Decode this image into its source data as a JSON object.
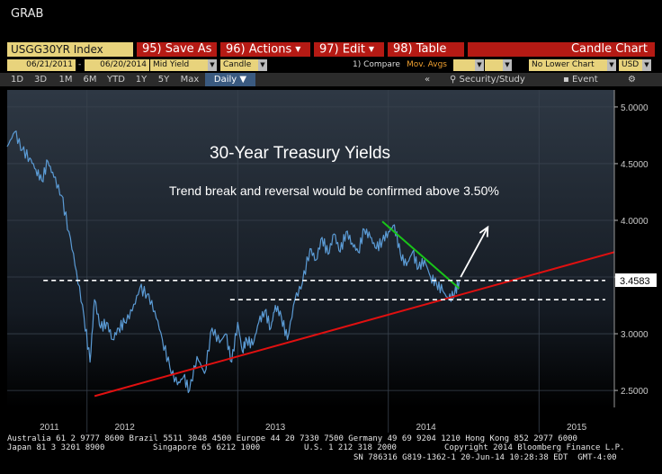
{
  "window": {
    "title": "GRAB"
  },
  "toolbar": {
    "ticker": "USGG30YR Index",
    "save_as": "95) Save As",
    "actions": "96) Actions",
    "edit": "97) Edit",
    "table": "98) Table",
    "chart_type": "Candle Chart"
  },
  "params": {
    "start_date": "06/21/2011",
    "end_date": "06/20/2014",
    "field": "Mid Yield",
    "style": "Candle",
    "compare": "1) Compare",
    "mov_avgs": "Mov. Avgs",
    "lower_chart": "No Lower Chart",
    "currency": "USD"
  },
  "range_buttons": [
    "1D",
    "3D",
    "1M",
    "6M",
    "YTD",
    "1Y",
    "5Y",
    "Max"
  ],
  "frequency": "Daily",
  "right_tools": {
    "security_study": "Security/Study",
    "event": "Event"
  },
  "last_price_label": "3.4583",
  "annotations": {
    "title": "30-Year Treasury Yields",
    "subtitle": "Trend break and reversal would be confirmed above 3.50%"
  },
  "footer": {
    "line1": "Australia 61 2 9777 8600 Brazil 5511 3048 4500 Europe 44 20 7330 7500 Germany 49 69 9204 1210 Hong Kong 852 2977 6000",
    "line2a": "Japan 81 3 3201 8900",
    "line2b": "Singapore 65 6212 1000",
    "line2c": "U.S. 1 212 318 2000",
    "line2d": "Copyright 2014 Bloomberg Finance L.P.",
    "line3": "SN 786316 G819-1362-1 20-Jun-14 10:28:38 EDT  GMT-4:00"
  },
  "colors": {
    "price": "#5b9bd5",
    "support_line": "#e01010",
    "resistance_line": "#19c419",
    "dashed_levels": "#ffffff",
    "arrow": "#ffffff"
  },
  "chart_data": {
    "type": "line",
    "y_tick_labels": [
      "2.5000",
      "3.0000",
      "3.5000",
      "4.0000",
      "4.5000",
      "5.0000"
    ],
    "ylim": [
      2.35,
      5.15
    ],
    "x_tick_labels": [
      "2011",
      "2012",
      "2013",
      "2014",
      "2015"
    ],
    "x_year_values": [
      2011.75,
      2012.25,
      2013.25,
      2014.25,
      2015.25
    ],
    "xlim": [
      2011.47,
      2015.5
    ],
    "grid": true,
    "series": [
      {
        "values_x": [
          2011.47,
          2011.52,
          2011.57,
          2011.62,
          2011.66,
          2011.7,
          2011.74,
          2011.78,
          2011.83,
          2011.88,
          2011.93,
          2011.98,
          2012.02,
          2012.05,
          2012.09,
          2012.13,
          2012.17,
          2012.21,
          2012.25,
          2012.3,
          2012.35,
          2012.4,
          2012.45,
          2012.5,
          2012.55,
          2012.6,
          2012.64,
          2012.68,
          2012.73,
          2012.78,
          2012.83,
          2012.88,
          2012.92,
          2012.96,
          2013.0,
          2013.03,
          2013.06,
          2013.1,
          2013.14,
          2013.18,
          2013.22,
          2013.25,
          2013.29,
          2013.33,
          2013.38,
          2013.43,
          2013.48,
          2013.52,
          2013.56,
          2013.6,
          2013.64,
          2013.68,
          2013.72,
          2013.76,
          2013.8,
          2013.84,
          2013.88,
          2013.92,
          2013.96,
          2014.0,
          2014.04,
          2014.08,
          2014.12,
          2014.16,
          2014.2,
          2014.24,
          2014.28,
          2014.32,
          2014.36,
          2014.4,
          2014.44,
          2014.47
        ],
        "values": [
          4.65,
          4.78,
          4.62,
          4.55,
          4.45,
          4.35,
          4.52,
          4.38,
          4.22,
          3.9,
          3.55,
          3.15,
          2.75,
          3.3,
          3.05,
          3.1,
          2.95,
          3.05,
          3.1,
          3.2,
          3.4,
          3.35,
          3.2,
          2.95,
          2.7,
          2.55,
          2.62,
          2.5,
          2.8,
          2.65,
          3.05,
          2.92,
          3.0,
          2.75,
          3.1,
          2.85,
          2.95,
          2.9,
          3.1,
          3.2,
          3.05,
          3.25,
          3.15,
          2.95,
          3.3,
          3.45,
          3.75,
          3.65,
          3.85,
          3.7,
          3.88,
          3.72,
          3.9,
          3.8,
          3.72,
          3.92,
          3.85,
          3.75,
          3.82,
          3.9,
          3.96,
          3.7,
          3.6,
          3.72,
          3.58,
          3.65,
          3.5,
          3.44,
          3.38,
          3.3,
          3.36,
          3.46
        ]
      }
    ],
    "support_line": {
      "x": [
        2012.05,
        2015.5
      ],
      "y": [
        2.45,
        3.72
      ]
    },
    "resistance_line": {
      "x": [
        2013.96,
        2014.47
      ],
      "y": [
        3.99,
        3.4
      ]
    },
    "dashed_levels": [
      {
        "y": 3.47,
        "x_start": 2011.71,
        "x_end": 2015.44
      },
      {
        "y": 3.3,
        "x_start": 2012.95,
        "x_end": 2015.44
      }
    ],
    "arrow": {
      "x": [
        2014.48,
        2014.66
      ],
      "y": [
        3.5,
        3.94
      ]
    }
  }
}
